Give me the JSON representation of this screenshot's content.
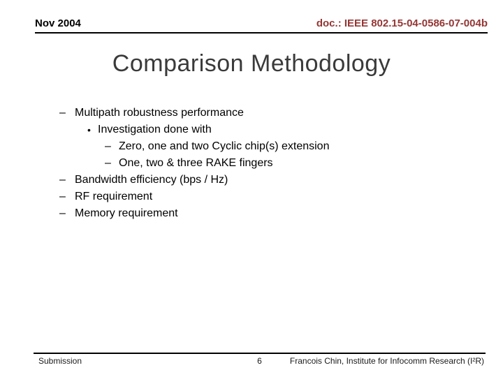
{
  "slide": {
    "header": {
      "date": "Nov 2004",
      "doc": "doc.: IEEE 802.15-04-0586-07-004b"
    },
    "title": "Comparison Methodology",
    "bullets": [
      {
        "level": 1,
        "marker": "–",
        "text": "Multipath robustness performance"
      },
      {
        "level": 2,
        "marker": "•",
        "text": "Investigation done with"
      },
      {
        "level": 3,
        "marker": "–",
        "text": "Zero, one and two Cyclic chip(s) extension"
      },
      {
        "level": 3,
        "marker": "–",
        "text": "One, two & three RAKE fingers"
      },
      {
        "level": 1,
        "marker": "–",
        "text": "Bandwidth efficiency (bps / Hz)"
      },
      {
        "level": 1,
        "marker": "–",
        "text": "RF requirement"
      },
      {
        "level": 1,
        "marker": "–",
        "text": "Memory requirement"
      }
    ],
    "footer": {
      "left": "Submission",
      "page": "6",
      "right": "Francois Chin, Institute for Infocomm Research (I²R)"
    },
    "colors": {
      "doc_text": "#943634",
      "title_text": "#3a3a3a",
      "body_text": "#000000",
      "rule": "#000000",
      "background": "#ffffff"
    }
  }
}
